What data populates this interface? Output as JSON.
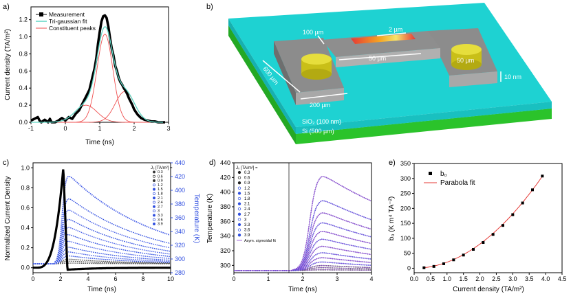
{
  "chart_data": [
    {
      "panel": "a)",
      "type": "line",
      "xlabel": "Time (ns)",
      "ylabel": "Current density (TA/m²)",
      "xlim": [
        -1,
        3
      ],
      "ylim": [
        0,
        1.35
      ],
      "xticks": [
        "-1",
        "0",
        "1",
        "2",
        "3"
      ],
      "yticks": [
        "0.0",
        "0.2",
        "0.4",
        "0.6",
        "0.8",
        "1.0",
        "1.2"
      ],
      "legend": [
        "Measurement",
        "Tri-gaussian fit",
        "Constituent peaks"
      ],
      "peaks": [
        {
          "amp": 0.2,
          "center": 0.6,
          "sigma": 0.32
        },
        {
          "amp": 1.03,
          "center": 1.15,
          "sigma": 0.23
        },
        {
          "amp": 0.36,
          "center": 1.73,
          "sigma": 0.28
        }
      ],
      "measurement": [
        [
          -1.0,
          0.02
        ],
        [
          -0.9,
          0.04
        ],
        [
          -0.8,
          0.06
        ],
        [
          -0.75,
          0.02
        ],
        [
          -0.7,
          0.0
        ],
        [
          -0.6,
          0.03
        ],
        [
          -0.5,
          0.0
        ],
        [
          -0.45,
          0.04
        ],
        [
          -0.4,
          0.0
        ],
        [
          -0.3,
          0.0
        ],
        [
          -0.2,
          0.02
        ],
        [
          -0.1,
          0.05
        ],
        [
          0.0,
          0.02
        ],
        [
          0.1,
          0.06
        ],
        [
          0.2,
          0.04
        ],
        [
          0.3,
          0.1
        ],
        [
          0.4,
          0.14
        ],
        [
          0.5,
          0.22
        ],
        [
          0.6,
          0.3
        ],
        [
          0.7,
          0.38
        ],
        [
          0.8,
          0.55
        ],
        [
          0.85,
          0.63
        ],
        [
          0.9,
          0.75
        ],
        [
          0.95,
          0.92
        ],
        [
          1.0,
          1.06
        ],
        [
          1.05,
          1.18
        ],
        [
          1.1,
          1.24
        ],
        [
          1.15,
          1.25
        ],
        [
          1.2,
          1.22
        ],
        [
          1.25,
          1.12
        ],
        [
          1.3,
          0.98
        ],
        [
          1.35,
          0.86
        ],
        [
          1.4,
          0.78
        ],
        [
          1.45,
          0.66
        ],
        [
          1.5,
          0.6
        ],
        [
          1.55,
          0.52
        ],
        [
          1.6,
          0.47
        ],
        [
          1.65,
          0.44
        ],
        [
          1.7,
          0.4
        ],
        [
          1.75,
          0.37
        ],
        [
          1.8,
          0.33
        ],
        [
          1.85,
          0.28
        ],
        [
          1.9,
          0.24
        ],
        [
          1.95,
          0.2
        ],
        [
          2.0,
          0.15
        ],
        [
          2.05,
          0.12
        ],
        [
          2.1,
          0.09
        ],
        [
          2.2,
          0.05
        ],
        [
          2.3,
          0.03
        ],
        [
          2.4,
          0.02
        ],
        [
          2.5,
          0.01
        ],
        [
          2.6,
          0.01
        ],
        [
          2.7,
          0.0
        ],
        [
          2.8,
          0.0
        ],
        [
          2.9,
          0.0
        ]
      ]
    },
    {
      "panel": "c)",
      "type": "line",
      "xlabel": "Time (ns)",
      "ylabel": "Normalized Current Density",
      "ylabel_right": "Temperature (K)",
      "xlim": [
        0,
        10
      ],
      "ylim": [
        -0.05,
        1.05
      ],
      "ylim_right": [
        280,
        440
      ],
      "xticks": [
        "0",
        "2",
        "4",
        "6",
        "8",
        "10"
      ],
      "yticks": [
        "0.0",
        "0.2",
        "0.4",
        "0.6",
        "0.8",
        "1.0"
      ],
      "yticks_right": [
        "280",
        "300",
        "320",
        "340",
        "360",
        "380",
        "400",
        "420",
        "440"
      ],
      "legend_title": "J₀ [TA/m²] =",
      "legend": [
        "0.3",
        "0.6",
        "0.9",
        "1.2",
        "1.5",
        "1.8",
        "2.1",
        "2.4",
        "2.7",
        "3",
        "3.3",
        "3.6",
        "3.9"
      ]
    },
    {
      "panel": "d)",
      "type": "line",
      "xlabel": "Time (ns)",
      "ylabel": "Temperature (K)",
      "xlim": [
        0,
        4
      ],
      "ylim": [
        290,
        440
      ],
      "xticks": [
        "0",
        "1",
        "2",
        "3",
        "4"
      ],
      "yticks": [
        "300",
        "320",
        "340",
        "360",
        "380",
        "400",
        "420",
        "440"
      ],
      "legend_title": "J₀ [TA/m²] =",
      "legend": [
        "0.3",
        "0.6",
        "0.9",
        "1.2",
        "1.5",
        "1.8",
        "2.1",
        "2.4",
        "2.7",
        "3",
        "3.3",
        "3.6",
        "3.9",
        "Asym. sigmoidal fit"
      ],
      "peak_temperatures": [
        294,
        297,
        300,
        305,
        311,
        318,
        327,
        337,
        348,
        360,
        374,
        391,
        425
      ],
      "baseline": 293
    },
    {
      "panel": "e)",
      "type": "scatter",
      "xlabel": "Current density (TA/m²)",
      "ylabel": "b₀ (K m⁴ TA⁻²)",
      "xlim": [
        0,
        4.5
      ],
      "ylim": [
        -15,
        350
      ],
      "xticks": [
        "0.0",
        "0.5",
        "1.0",
        "1.5",
        "2.0",
        "2.5",
        "3.0",
        "3.5",
        "4.0",
        "4.5"
      ],
      "yticks": [
        "0",
        "50",
        "100",
        "150",
        "200",
        "250",
        "300",
        "350"
      ],
      "legend": [
        "b₀",
        "Parabola fit"
      ],
      "x": [
        0.3,
        0.6,
        0.9,
        1.2,
        1.5,
        1.8,
        2.1,
        2.4,
        2.7,
        3.0,
        3.3,
        3.6,
        3.9
      ],
      "y": [
        1.5,
        6,
        15,
        28,
        44,
        63,
        86,
        113,
        143,
        179,
        218,
        262,
        308
      ],
      "fit_coefficient": 20.2
    }
  ],
  "diagram": {
    "panel": "b)",
    "labels": {
      "width": "100 µm",
      "gap": "2 µm",
      "bridge": "50 µm",
      "length": "600 µm",
      "pad": "200 µm",
      "contact": "50 µm",
      "thickness": "10 nm",
      "oxide": "SiO₂ (100 nm)",
      "substrate": "Si (500 µm)"
    }
  },
  "colors": {
    "black": "#000000",
    "fit": "#5fd6c4",
    "peaks": "#ef4f4f",
    "blue": "#2f4ee0",
    "purple": "#a060d8",
    "violet": "#6a3ec0",
    "cyan": "#1ed2d2",
    "green": "#2ed42e",
    "gray": "#9a9a9a",
    "gold": "#d8d028",
    "red": "#e53935"
  }
}
